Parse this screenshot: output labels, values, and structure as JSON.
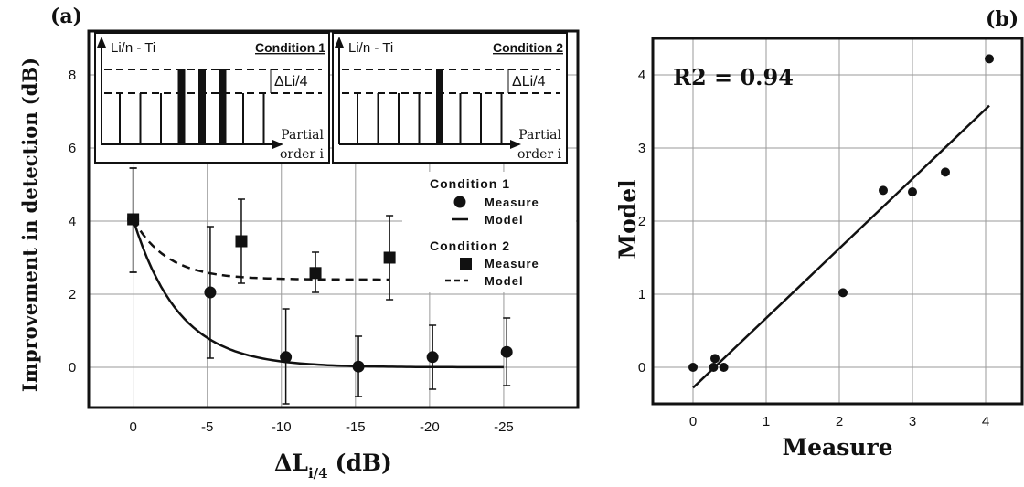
{
  "colors": {
    "ink": "#111111",
    "grid": "#9a9a9a",
    "background": "#ffffff"
  },
  "chart_data": [
    {
      "panel_label": "(a)",
      "type": "scatter",
      "ylabel": "Improvement in detection (dB)",
      "xlabel_main": "ΔL",
      "xlabel_sub": "i/4",
      "xlabel_unit": "(dB)",
      "xlim": [
        3,
        -30
      ],
      "ylim": [
        -1.1,
        9.2
      ],
      "xticks": [
        0,
        -5,
        -10,
        -15,
        -20,
        -25
      ],
      "xtick_labels": [
        "0",
        "-5",
        "-10",
        "-15",
        "-20",
        "-25"
      ],
      "yticks": [
        0,
        2,
        4,
        6,
        8
      ],
      "ytick_labels": [
        "0",
        "2",
        "4",
        "6",
        "8"
      ],
      "grid": true,
      "legend": {
        "placement": "right",
        "cond1_title": "Condition 1",
        "cond2_title": "Condition 2",
        "measure_label": "Measure",
        "model_label": "Model"
      },
      "series": [
        {
          "name": "Condition 1 Measure",
          "marker": "circle",
          "x": [
            0,
            -5.2,
            -10.3,
            -15.2,
            -20.2,
            -25.2
          ],
          "y": [
            4.05,
            2.05,
            0.28,
            0.02,
            0.28,
            0.42
          ],
          "yerr_high": [
            5.45,
            3.85,
            1.6,
            0.85,
            1.15,
            1.35
          ],
          "yerr_low": [
            2.6,
            0.25,
            -1.0,
            -0.8,
            -0.6,
            -0.5
          ]
        },
        {
          "name": "Condition 2 Measure",
          "marker": "square",
          "x": [
            0,
            -7.3,
            -12.3,
            -17.3
          ],
          "y": [
            4.05,
            3.45,
            2.58,
            3.0
          ],
          "yerr_high": [
            5.45,
            4.6,
            3.15,
            4.15
          ],
          "yerr_low": [
            2.6,
            2.3,
            2.05,
            1.85
          ]
        },
        {
          "name": "Condition 1 Model",
          "style": "solid",
          "function": "4.05*exp(-|x|/3.1)",
          "x_range": [
            0,
            -25
          ]
        },
        {
          "name": "Condition 2 Model",
          "style": "dashed",
          "function": "2.4+1.65*exp(-|x|/2.3)",
          "x_range": [
            0,
            -17.3
          ]
        }
      ],
      "insets": [
        {
          "title": "Condition 1",
          "y_axis_label": "Li/n - Ti",
          "delta_label": "ΔLi/4",
          "x_axis_label_line1": "Partial",
          "x_axis_label_line2": "order i",
          "highlighted_partials": 3
        },
        {
          "title": "Condition 2",
          "y_axis_label": "Li/n - Ti",
          "delta_label": "ΔLi/4",
          "x_axis_label_line1": "Partial",
          "x_axis_label_line2": "order i",
          "highlighted_partials": 1
        }
      ]
    },
    {
      "panel_label": "(b)",
      "type": "scatter",
      "xlabel": "Measure",
      "ylabel": "Model",
      "annotation": "R2 = 0.94",
      "xlim": [
        -0.55,
        4.5
      ],
      "ylim": [
        -0.5,
        4.5
      ],
      "xticks": [
        0,
        1,
        2,
        3,
        4
      ],
      "xtick_labels": [
        "0",
        "1",
        "2",
        "3",
        "4"
      ],
      "yticks": [
        0,
        1,
        2,
        3,
        4
      ],
      "ytick_labels": [
        "0",
        "1",
        "2",
        "3",
        "4"
      ],
      "grid": true,
      "points": {
        "x": [
          0.0,
          0.28,
          0.3,
          0.42,
          2.05,
          2.6,
          3.0,
          3.45,
          4.05
        ],
        "y": [
          0.0,
          0.0,
          0.12,
          0.0,
          1.02,
          2.42,
          2.4,
          2.67,
          4.22
        ]
      },
      "fit_line": {
        "x": [
          0.0,
          4.05
        ],
        "y": [
          -0.28,
          3.58
        ]
      }
    }
  ]
}
